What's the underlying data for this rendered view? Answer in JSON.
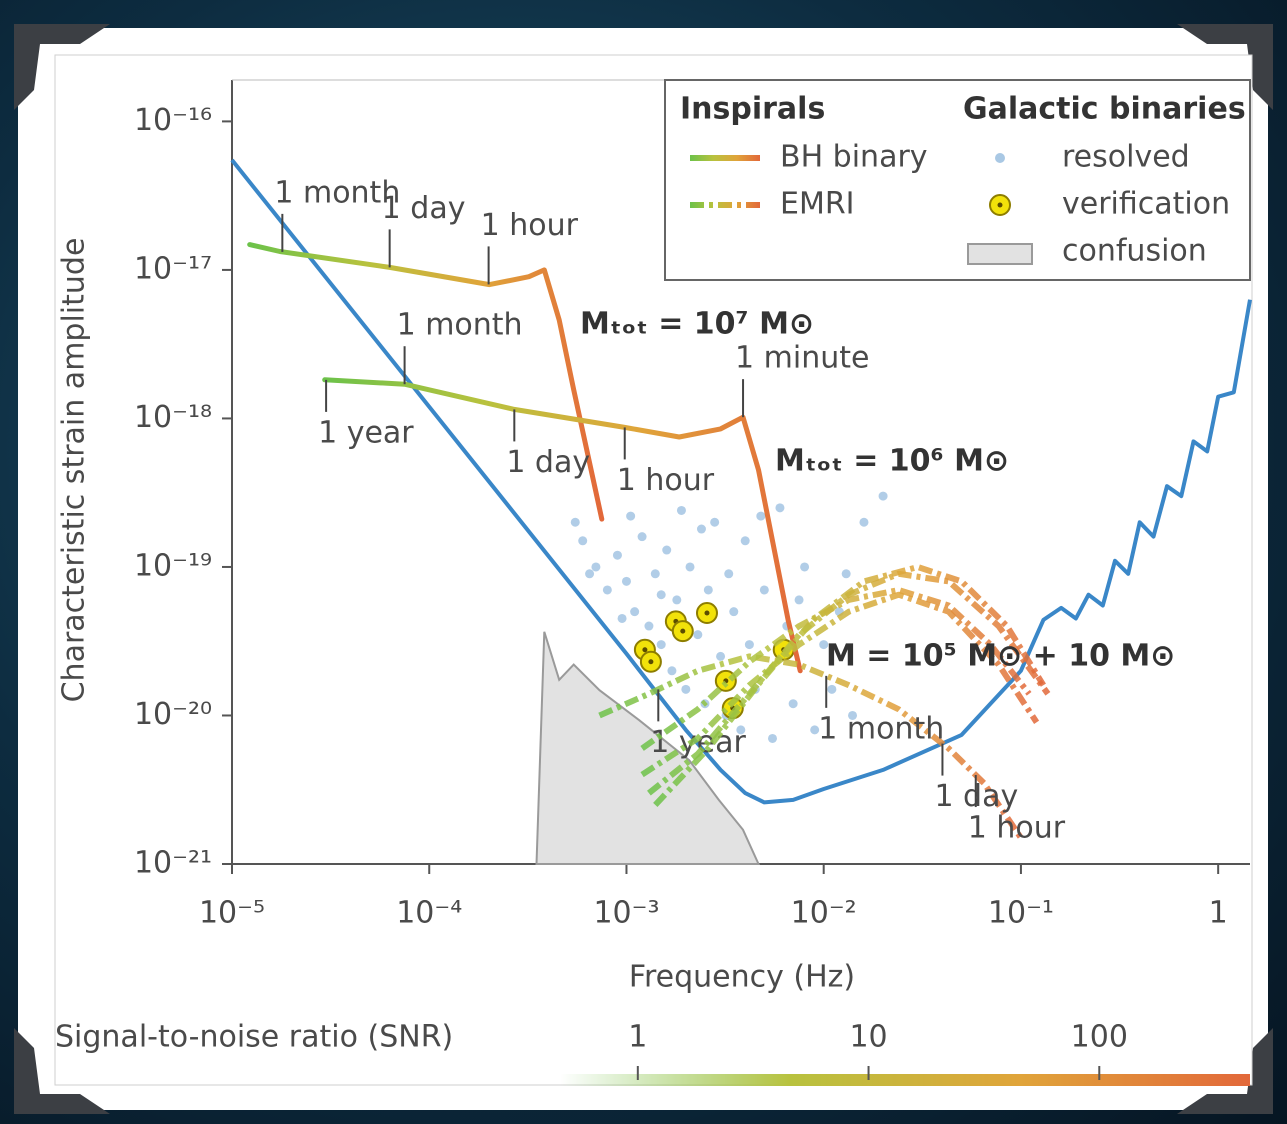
{
  "chart_data": {
    "type": "line",
    "x_label": "Frequency (Hz)",
    "y_label": "Characteristic strain amplitude",
    "log_x": true,
    "log_y": true,
    "xlim": [
      1e-05,
      1.45
    ],
    "ylim": [
      1e-21,
      1.9e-16
    ],
    "xticks": [
      {
        "value": 1e-05,
        "label": "10⁻⁵"
      },
      {
        "value": 0.0001,
        "label": "10⁻⁴"
      },
      {
        "value": 0.001,
        "label": "10⁻³"
      },
      {
        "value": 0.01,
        "label": "10⁻²"
      },
      {
        "value": 0.1,
        "label": "10⁻¹"
      },
      1
    ],
    "yticks": [
      {
        "value": 1e-16,
        "label": "10⁻¹⁶"
      },
      {
        "value": 1e-17,
        "label": "10⁻¹⁷"
      },
      {
        "value": 1e-18,
        "label": "10⁻¹⁸"
      },
      {
        "value": 1e-19,
        "label": "10⁻¹⁹"
      },
      {
        "value": 1e-20,
        "label": "10⁻²⁰"
      },
      {
        "value": 1e-21,
        "label": "10⁻²¹"
      }
    ],
    "legend_titles": [
      "Inspirals",
      "Galactic binaries"
    ],
    "colormap": {
      "label": "Signal-to-noise ratio (SNR)",
      "lim": [
        0.46,
        450
      ],
      "ticks": [
        1,
        10,
        100
      ],
      "colors": [
        "#6cc24a",
        "#b8c23e",
        "#e0a43a",
        "#e2683a"
      ]
    },
    "series": [
      {
        "type": "line",
        "color": "#3a87c8",
        "x": [
          1e-05,
          0.0001,
          0.001,
          0.002,
          0.003,
          0.004,
          0.005,
          0.007,
          0.01,
          0.02,
          0.05,
          0.1,
          0.13,
          0.16,
          0.19,
          0.22,
          0.26,
          0.3,
          0.35,
          0.4,
          0.47,
          0.55,
          0.65,
          0.75,
          0.88,
          1.0,
          1.2,
          1.45
        ],
        "values": [
          5.5e-17,
          1.2e-18,
          2.6e-20,
          8e-21,
          4.3e-21,
          3e-21,
          2.6e-21,
          2.7e-21,
          3.2e-21,
          4.3e-21,
          7.4e-21,
          2e-20,
          4.4e-20,
          5.3e-20,
          4.5e-20,
          6.5e-20,
          5.5e-20,
          1.1e-19,
          9e-20,
          2e-19,
          1.6e-19,
          3.5e-19,
          3e-19,
          7e-19,
          6e-19,
          1.4e-18,
          1.5e-18,
          6.3e-18
        ]
      },
      {
        "name": "BH binary",
        "type": "line",
        "tracks": [
          {
            "label": "Mₜₒₜ = 10⁷ M⊙",
            "x": [
              1.23e-05,
              1.75e-05,
              6.3e-05,
              0.000202,
              0.00032,
              0.000383,
              0.000456,
              0.00054,
              0.00075
            ],
            "values": [
              1.48e-17,
              1.33e-17,
              1.04e-17,
              7.97e-18,
              9e-18,
              1e-17,
              4.6e-18,
              1.56e-18,
              2.1e-19
            ],
            "time_marks": [
              {
                "label": "1 month",
                "x": 1.8e-05
              },
              {
                "label": "1 day",
                "x": 6.3e-05
              },
              {
                "label": "1 hour",
                "x": 0.0002
              }
            ]
          },
          {
            "label": "Mₜₒₜ = 10⁶ M⊙",
            "x": [
              2.95e-05,
              7.5e-05,
              0.00027,
              0.00098,
              0.00185,
              0.003,
              0.0039,
              0.00467,
              0.0066,
              0.0076
            ],
            "values": [
              1.82e-18,
              1.7e-18,
              1.15e-18,
              8.7e-19,
              7.5e-19,
              8.5e-19,
              1.02e-18,
              4.5e-19,
              4.4e-20,
              2e-20
            ],
            "time_marks": [
              {
                "label": "1 year",
                "x": 3e-05
              },
              {
                "label": "1 month",
                "x": 7.5e-05
              },
              {
                "label": "1 day",
                "x": 0.00027
              },
              {
                "label": "1 hour",
                "x": 0.00098
              },
              {
                "label": "1 minute",
                "x": 0.0039
              }
            ]
          }
        ]
      },
      {
        "name": "EMRI",
        "type": "line",
        "dashed": true,
        "label": "M = 10⁵ M⊙ + 10 M⊙",
        "tracks": [
          {
            "x": [
              0.00073,
              0.0013,
              0.0023,
              0.0042,
              0.0075,
              0.0134,
              0.024,
              0.043,
              0.065,
              0.1
            ],
            "values": [
              1e-20,
              1.4e-20,
              2e-20,
              2.5e-20,
              2.2e-20,
              1.6e-20,
              1.1e-20,
              6e-21,
              3.5e-21,
              1.5e-21
            ],
            "time_marks": [
              {
                "label": "1 year",
                "x": 0.00145
              },
              {
                "label": "1 month",
                "x": 0.0103
              },
              {
                "label": "1 day",
                "x": 0.04
              },
              {
                "label": "1 hour",
                "x": 0.059
              }
            ]
          },
          {
            "x": [
              0.0012,
              0.0023,
              0.0042,
              0.0075,
              0.0134,
              0.024,
              0.043,
              0.077,
              0.12
            ],
            "values": [
              4e-21,
              7e-21,
              1.6e-20,
              3e-20,
              5e-20,
              6.5e-20,
              5e-20,
              2.2e-20,
              9e-21
            ]
          },
          {
            "x": [
              0.0013,
              0.0023,
              0.0042,
              0.0075,
              0.0134,
              0.024,
              0.043,
              0.077,
              0.137
            ],
            "values": [
              3e-21,
              5.5e-21,
              1.4e-20,
              3.5e-20,
              6.5e-20,
              9e-20,
              8e-20,
              4e-20,
              1.4e-20
            ]
          },
          {
            "x": [
              0.0014,
              0.0026,
              0.0048,
              0.009,
              0.016,
              0.03,
              0.05,
              0.085,
              0.13
            ],
            "values": [
              2.5e-21,
              6e-21,
              1.7e-20,
              4.5e-20,
              8e-20,
              1e-19,
              8e-20,
              4e-20,
              1.6e-20
            ]
          },
          {
            "x": [
              0.0012,
              0.0023,
              0.0042,
              0.0075,
              0.0134,
              0.024,
              0.043,
              0.07,
              0.11
            ],
            "values": [
              6e-21,
              1.1e-20,
              2.3e-20,
              4e-20,
              6e-20,
              7e-20,
              5.5e-20,
              3e-20,
              1.4e-20
            ]
          }
        ]
      },
      {
        "name": "resolved",
        "type": "scatter",
        "color": "#a9c8e4",
        "x": [
          0.0006,
          0.0007,
          0.0008,
          0.0009,
          0.001,
          0.0011,
          0.0012,
          0.0013,
          0.0014,
          0.0015,
          0.0016,
          0.0017,
          0.0018,
          0.002,
          0.0021,
          0.0023,
          0.0025,
          0.0026,
          0.0028,
          0.003,
          0.0032,
          0.0035,
          0.0038,
          0.004,
          0.0042,
          0.0045,
          0.005,
          0.0055,
          0.006,
          0.0065,
          0.007,
          0.008,
          0.009,
          0.01,
          0.011,
          0.012,
          0.014,
          0.016,
          0.00055,
          0.00065,
          0.00105,
          0.0019,
          0.0024,
          0.0033,
          0.0048,
          0.0075,
          0.013,
          0.02,
          0.00095,
          0.0015
        ],
        "values": [
          1.5e-19,
          1e-19,
          7e-20,
          1.2e-19,
          8e-20,
          5e-20,
          1.6e-19,
          4e-20,
          9e-20,
          3e-20,
          1.3e-19,
          2e-20,
          6e-20,
          1.5e-20,
          1e-19,
          3.5e-20,
          1.2e-20,
          7e-20,
          2e-19,
          2.5e-20,
          1e-20,
          5e-20,
          8e-21,
          1.5e-19,
          3e-20,
          1.5e-20,
          7e-20,
          7e-21,
          2.5e-19,
          4e-20,
          1.2e-20,
          1e-19,
          8e-21,
          3e-20,
          1.5e-20,
          5e-20,
          1e-20,
          2e-19,
          2e-19,
          9e-20,
          2.2e-19,
          2.4e-19,
          1.8e-19,
          9e-20,
          2.2e-19,
          6e-20,
          9e-20,
          3e-19,
          4.5e-20,
          6.5e-20
        ]
      },
      {
        "name": "verification",
        "type": "scatter",
        "color": "#f2e20a",
        "x": [
          0.00124,
          0.00133,
          0.00178,
          0.00193,
          0.00256,
          0.00319,
          0.00346,
          0.00627
        ],
        "values": [
          2.77e-20,
          2.3e-20,
          4.3e-20,
          3.7e-20,
          4.9e-20,
          1.71e-20,
          1.12e-20,
          2.77e-20
        ]
      },
      {
        "name": "confusion",
        "type": "area",
        "color": "#e2e2e2",
        "x": [
          0.00035,
          0.000383,
          0.000456,
          0.00054,
          0.00073,
          0.00116,
          0.00208,
          0.00294,
          0.0039,
          0.00467
        ],
        "values": [
          1e-21,
          3.66e-20,
          1.74e-20,
          2.2e-20,
          1.48e-20,
          9.3e-21,
          5e-21,
          2.7e-21,
          1.7e-21,
          1e-21
        ]
      }
    ]
  }
}
